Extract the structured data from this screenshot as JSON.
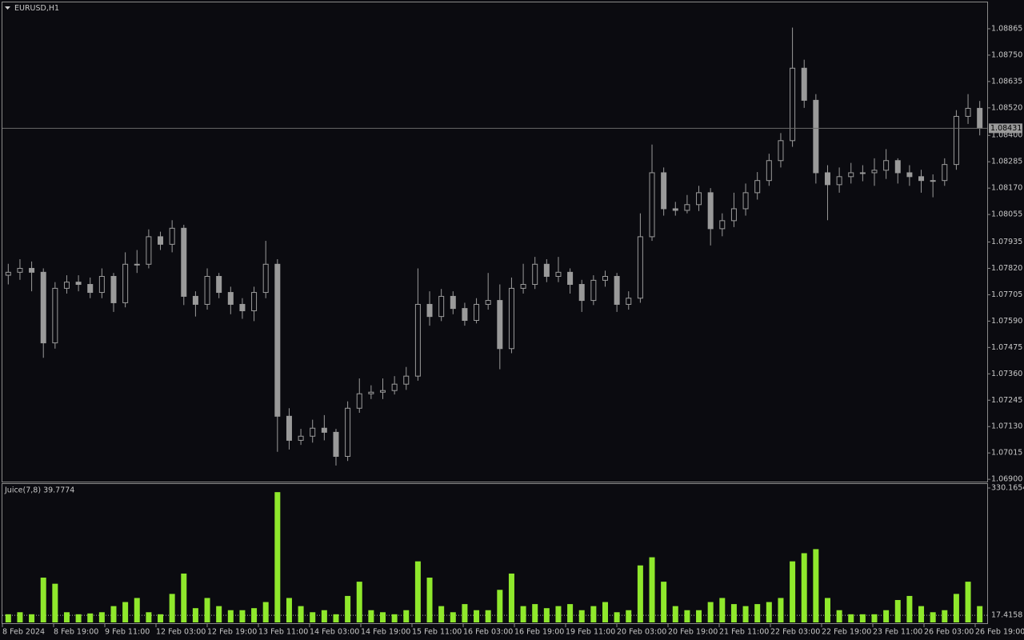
{
  "chart_data": [
    {
      "type": "candlestick",
      "title": "EURUSD,H1",
      "color": "#9a9a9a",
      "open": [
        1.0779,
        1.07803,
        1.0782,
        1.07803,
        1.07495,
        1.07733,
        1.0776,
        1.0775,
        1.07715,
        1.07785,
        1.0767,
        1.07838,
        1.07838,
        1.07958,
        1.07925,
        1.07995,
        1.07698,
        1.07663,
        1.07785,
        1.07715,
        1.07663,
        1.07635,
        1.07715,
        1.07838,
        1.07175,
        1.0707,
        1.07088,
        1.07123,
        1.07105,
        1.07,
        1.0721,
        1.07273,
        1.0728,
        1.07287,
        1.07315,
        1.0735,
        1.07663,
        1.0761,
        1.07698,
        1.07645,
        1.07593,
        1.07663,
        1.0768,
        1.0747,
        1.07733,
        1.0775,
        1.07838,
        1.07785,
        1.07803,
        1.0775,
        1.0768,
        1.07768,
        1.07785,
        1.07663,
        1.0769,
        1.07958,
        1.08237,
        1.0808,
        1.08073,
        1.08098,
        1.0815,
        1.07993,
        1.08028,
        1.0808,
        1.0815,
        1.08203,
        1.0829,
        1.08377,
        1.08693,
        1.08553,
        1.08237,
        1.08185,
        1.0822,
        1.08237,
        1.08237,
        1.08248,
        1.0829,
        1.08237,
        1.0822,
        1.08203,
        1.08203,
        1.08273,
        1.08483,
        1.08518
      ],
      "high": [
        1.0784,
        1.0786,
        1.0785,
        1.0782,
        1.0776,
        1.0779,
        1.0779,
        1.0778,
        1.0782,
        1.078,
        1.0789,
        1.079,
        1.0799,
        1.0798,
        1.0803,
        1.0801,
        1.0772,
        1.0782,
        1.078,
        1.0774,
        1.0769,
        1.0774,
        1.0794,
        1.0786,
        1.0721,
        1.0712,
        1.0716,
        1.0718,
        1.0712,
        1.0724,
        1.0734,
        1.0731,
        1.0734,
        1.0735,
        1.0739,
        1.0782,
        1.0772,
        1.0773,
        1.0772,
        1.0767,
        1.0769,
        1.078,
        1.0775,
        1.0778,
        1.0784,
        1.0787,
        1.0786,
        1.0787,
        1.0782,
        1.0777,
        1.0779,
        1.0781,
        1.078,
        1.0772,
        1.0806,
        1.0836,
        1.0826,
        1.0811,
        1.0814,
        1.0818,
        1.0817,
        1.0806,
        1.0815,
        1.0819,
        1.0824,
        1.0832,
        1.0841,
        1.0887,
        1.0873,
        1.0858,
        1.0827,
        1.0826,
        1.0828,
        1.0827,
        1.083,
        1.0834,
        1.083,
        1.0827,
        1.0825,
        1.0823,
        1.083,
        1.0851,
        1.0858,
        1.0855
      ],
      "low": [
        1.0775,
        1.0777,
        1.0772,
        1.0743,
        1.0747,
        1.0771,
        1.0772,
        1.0769,
        1.0769,
        1.0763,
        1.0765,
        1.078,
        1.0782,
        1.079,
        1.0789,
        1.0766,
        1.0761,
        1.0764,
        1.0769,
        1.0762,
        1.076,
        1.0759,
        1.0769,
        1.0702,
        1.0703,
        1.0705,
        1.0706,
        1.0707,
        1.0696,
        1.0698,
        1.0719,
        1.0725,
        1.0725,
        1.0727,
        1.0729,
        1.0733,
        1.0757,
        1.0759,
        1.0762,
        1.0757,
        1.0758,
        1.0764,
        1.0738,
        1.0745,
        1.0771,
        1.0773,
        1.0776,
        1.0776,
        1.0771,
        1.0763,
        1.0766,
        1.0774,
        1.0763,
        1.0764,
        1.0767,
        1.0794,
        1.0805,
        1.0805,
        1.0806,
        1.0807,
        1.0792,
        1.0796,
        1.08,
        1.0805,
        1.0812,
        1.0818,
        1.0826,
        1.0835,
        1.0852,
        1.0819,
        1.0803,
        1.0815,
        1.0819,
        1.082,
        1.0818,
        1.0821,
        1.0819,
        1.0818,
        1.0815,
        1.0813,
        1.0818,
        1.0825,
        1.0845,
        1.084
      ],
      "close": [
        1.07803,
        1.0782,
        1.07803,
        1.07495,
        1.07733,
        1.0776,
        1.0775,
        1.07715,
        1.07785,
        1.0767,
        1.07838,
        1.07838,
        1.07958,
        1.07925,
        1.07995,
        1.07698,
        1.07663,
        1.07785,
        1.07715,
        1.07663,
        1.07635,
        1.07715,
        1.07838,
        1.07175,
        1.0707,
        1.07088,
        1.07123,
        1.07105,
        1.07,
        1.0721,
        1.07273,
        1.0728,
        1.07287,
        1.07315,
        1.0735,
        1.07663,
        1.0761,
        1.07698,
        1.07645,
        1.07593,
        1.07663,
        1.0768,
        1.0747,
        1.07733,
        1.0775,
        1.07838,
        1.07785,
        1.07803,
        1.0775,
        1.0768,
        1.07768,
        1.07785,
        1.07663,
        1.0769,
        1.07958,
        1.08237,
        1.0808,
        1.08073,
        1.08098,
        1.0815,
        1.07993,
        1.08028,
        1.0808,
        1.0815,
        1.08203,
        1.0829,
        1.08377,
        1.08693,
        1.08553,
        1.08237,
        1.08185,
        1.0822,
        1.08237,
        1.08237,
        1.08248,
        1.0829,
        1.08237,
        1.0822,
        1.08203,
        1.08203,
        1.08273,
        1.08483,
        1.08518,
        1.08431
      ],
      "current_price": 1.08431,
      "ylim": [
        1.0689,
        1.0898
      ],
      "yticks": [
        1.08865,
        {
          "value": 1.0875,
          "label": "1.08750"
        },
        1.08635,
        {
          "value": 1.0852,
          "label": "1.08520"
        },
        {
          "value": 1.084,
          "label": "1.08400"
        },
        1.08285,
        {
          "value": 1.0817,
          "label": "1.08170"
        },
        1.08055,
        1.07935,
        {
          "value": 1.0782,
          "label": "1.07820"
        },
        1.07705,
        {
          "value": 1.0759,
          "label": "1.07590"
        },
        1.07475,
        {
          "value": 1.0736,
          "label": "1.07360"
        },
        1.07245,
        {
          "value": 1.0713,
          "label": "1.07130"
        },
        1.07015,
        {
          "value": 1.069,
          "label": "1.06900"
        }
      ],
      "x_labels": [
        "8 Feb 2024",
        "8 Feb 19:00",
        "9 Feb 11:00",
        "12 Feb 03:00",
        "12 Feb 19:00",
        "13 Feb 11:00",
        "14 Feb 03:00",
        "14 Feb 19:00",
        "15 Feb 11:00",
        "16 Feb 03:00",
        "16 Feb 19:00",
        "19 Feb 11:00",
        "20 Feb 03:00",
        "20 Feb 19:00",
        "21 Feb 11:00",
        "22 Feb 03:00",
        "22 Feb 19:00",
        "23 Feb 11:00",
        "26 Feb 03:00",
        "26 Feb 19:00"
      ]
    },
    {
      "type": "bar",
      "title": "Juice(7,8) 39.7774",
      "color": "#8fe82c",
      "values": [
        20,
        25,
        20,
        110,
        95,
        25,
        20,
        22,
        25,
        40,
        50,
        60,
        25,
        20,
        70,
        120,
        35,
        60,
        40,
        30,
        30,
        35,
        50,
        320,
        60,
        40,
        25,
        30,
        20,
        65,
        100,
        30,
        25,
        20,
        30,
        150,
        110,
        40,
        25,
        45,
        30,
        30,
        80,
        120,
        40,
        45,
        35,
        40,
        45,
        30,
        40,
        50,
        25,
        30,
        140,
        160,
        100,
        40,
        30,
        30,
        50,
        60,
        45,
        40,
        45,
        50,
        60,
        150,
        170,
        180,
        60,
        30,
        20,
        20,
        20,
        30,
        55,
        65,
        40,
        25,
        30,
        70,
        100,
        40
      ],
      "ylim": [
        0,
        340
      ],
      "yticks": [
        330.1654
      ],
      "level": 17.4158
    }
  ]
}
